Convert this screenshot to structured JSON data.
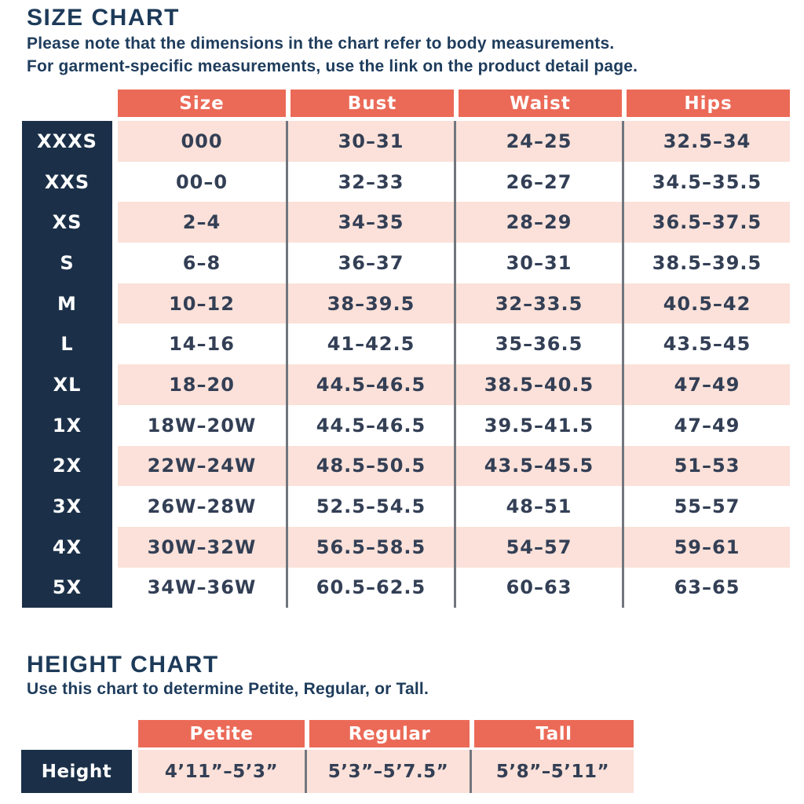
{
  "size_chart": {
    "title": "SIZE CHART",
    "note_line1": "Please note that the dimensions in the chart refer to body measurements.",
    "note_line2": "For garment-specific measurements, use the link on the product detail page.",
    "columns": [
      "Size",
      "Bust",
      "Waist",
      "Hips"
    ],
    "rows": [
      {
        "label": "XXXS",
        "values": [
          "000",
          "30–31",
          "24–25",
          "32.5–34"
        ]
      },
      {
        "label": "XXS",
        "values": [
          "00–0",
          "32–33",
          "26–27",
          "34.5–35.5"
        ]
      },
      {
        "label": "XS",
        "values": [
          "2–4",
          "34–35",
          "28–29",
          "36.5–37.5"
        ]
      },
      {
        "label": "S",
        "values": [
          "6–8",
          "36–37",
          "30–31",
          "38.5–39.5"
        ]
      },
      {
        "label": "M",
        "values": [
          "10–12",
          "38–39.5",
          "32–33.5",
          "40.5–42"
        ]
      },
      {
        "label": "L",
        "values": [
          "14–16",
          "41–42.5",
          "35–36.5",
          "43.5–45"
        ]
      },
      {
        "label": "XL",
        "values": [
          "18–20",
          "44.5–46.5",
          "38.5–40.5",
          "47–49"
        ]
      },
      {
        "label": "1X",
        "values": [
          "18W–20W",
          "44.5–46.5",
          "39.5–41.5",
          "47–49"
        ]
      },
      {
        "label": "2X",
        "values": [
          "22W–24W",
          "48.5–50.5",
          "43.5–45.5",
          "51–53"
        ]
      },
      {
        "label": "3X",
        "values": [
          "26W–28W",
          "52.5–54.5",
          "48–51",
          "55–57"
        ]
      },
      {
        "label": "4X",
        "values": [
          "30W–32W",
          "56.5–58.5",
          "54–57",
          "59–61"
        ]
      },
      {
        "label": "5X",
        "values": [
          "34W–36W",
          "60.5–62.5",
          "60–63",
          "63–65"
        ]
      }
    ]
  },
  "height_chart": {
    "title": "HEIGHT CHART",
    "note": "Use this chart to determine Petite, Regular, or Tall.",
    "columns": [
      "Petite",
      "Regular",
      "Tall"
    ],
    "row_label": "Height",
    "values": [
      "4’11”–5’3”",
      "5’3”–5’7.5”",
      "5’8”–5’11”"
    ]
  },
  "colors": {
    "coral": "#EB6A57",
    "navy": "#1B3048",
    "pink": "#FBE1D9",
    "title_navy": "#1D3A59",
    "note_navy": "#1E3C5C",
    "value_navy": "#333F55",
    "divider": "#71767E"
  }
}
